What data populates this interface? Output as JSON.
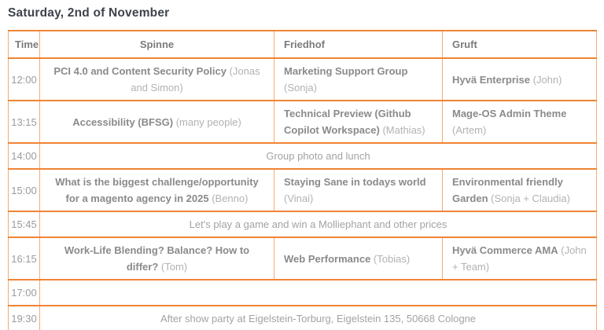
{
  "title": "Saturday, 2nd of November",
  "table": {
    "headers": [
      "Time",
      "Spinne",
      "Friedhof",
      "Gruft"
    ],
    "rows": [
      {
        "time": "12:00",
        "span": false,
        "cells": [
          {
            "title": "PCI 4.0 and Content Security Policy",
            "speaker": "(Jonas and Simon)"
          },
          {
            "title": "Marketing Support Group",
            "speaker": "(Sonja)"
          },
          {
            "title": "Hyvä Enterprise",
            "speaker": "(John)"
          }
        ]
      },
      {
        "time": "13:15",
        "span": false,
        "cells": [
          {
            "title": "Accessibility (BFSG)",
            "speaker": "(many people)"
          },
          {
            "title": "Technical Preview (Github Copilot Workspace)",
            "speaker": "(Mathias)"
          },
          {
            "title": "Mage-OS Admin Theme",
            "speaker": "(Artem)"
          }
        ]
      },
      {
        "time": "14:00",
        "span": true,
        "text": "Group photo and lunch"
      },
      {
        "time": "15:00",
        "span": false,
        "cells": [
          {
            "title": "What is the biggest challenge/opportunity for a magento agency in 2025",
            "speaker": "(Benno)"
          },
          {
            "title": "Staying Sane in todays world",
            "speaker": "(Vinai)"
          },
          {
            "title": "Environmental friendly Garden",
            "speaker": "(Sonja + Claudia)"
          }
        ]
      },
      {
        "time": "15:45",
        "span": true,
        "text": "Let's play a game and win a Molliephant and other prices"
      },
      {
        "time": "16:15",
        "span": false,
        "cells": [
          {
            "title": "Work-Life Blending? Balance? How to differ?",
            "speaker": "(Tom)"
          },
          {
            "title": "Web Performance",
            "speaker": "(Tobias)"
          },
          {
            "title": "Hyvä Commerce AMA",
            "speaker": "(John + Team)"
          }
        ]
      },
      {
        "time": "17:00",
        "span": true,
        "text": ""
      },
      {
        "time": "19:30",
        "span": true,
        "text": "After show party at Eigelstein-Torburg, Eigelstein 135, 50668 Cologne"
      }
    ]
  },
  "colors": {
    "border_vertical": "#f6aa73",
    "border_horizontal": "#f08435",
    "title_text": "#3e434b",
    "header_text": "#7b7b7b",
    "session_title_text": "#8a8a8a",
    "speaker_text": "#b2b2b2",
    "background": "#ffffff"
  }
}
